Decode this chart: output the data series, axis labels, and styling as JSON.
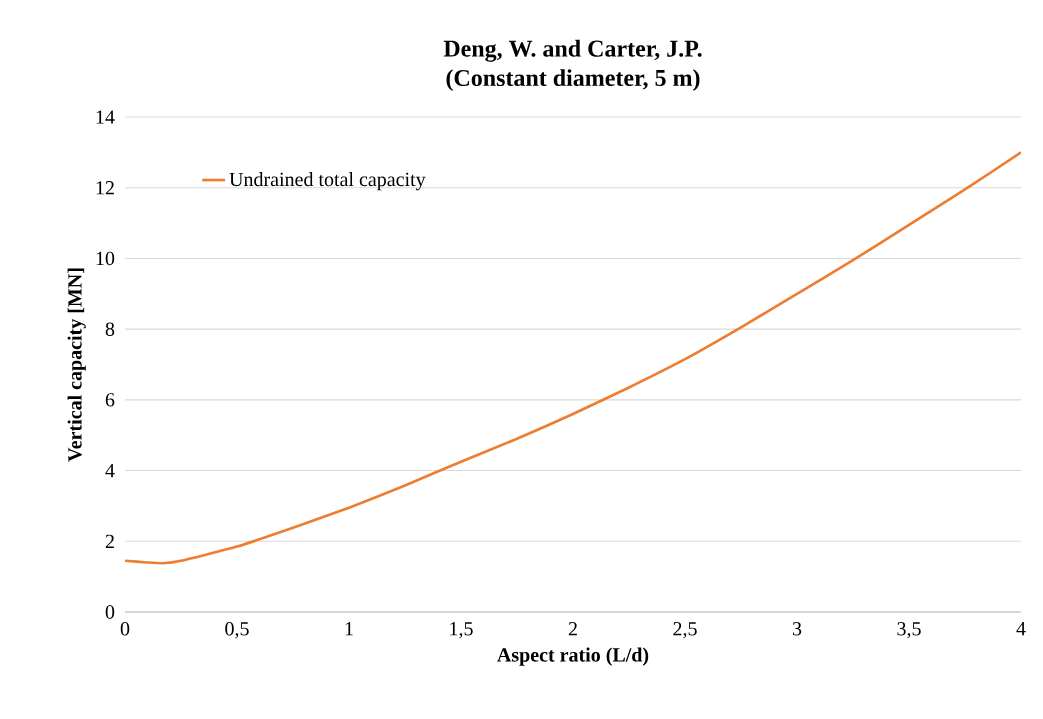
{
  "chart_data": {
    "type": "line",
    "title": "Deng, W. and Carter, J.P.\n(Constant diameter, 5 m)",
    "xlabel": "Aspect ratio  (L/d)",
    "ylabel": "Vertical  capacity [MN]",
    "series": [
      {
        "name": "Undrained total capacity",
        "color": "#ed7d31",
        "x": [
          0,
          0.1,
          0.17,
          0.25,
          0.5,
          0.75,
          1,
          1.25,
          1.5,
          1.75,
          2,
          2.25,
          2.5,
          2.75,
          3,
          3.25,
          3.5,
          3.75,
          4
        ],
        "values": [
          1.45,
          1.4,
          1.38,
          1.45,
          1.85,
          2.38,
          2.95,
          3.58,
          4.25,
          4.9,
          5.6,
          6.35,
          7.15,
          8.05,
          9.0,
          9.95,
          10.95,
          11.95,
          13.0
        ]
      }
    ],
    "xlim": [
      0,
      4
    ],
    "xticks": [
      0,
      {
        "value": 0.5,
        "label": "0,5"
      },
      1,
      {
        "value": 1.5,
        "label": "1,5"
      },
      2,
      {
        "value": 2.5,
        "label": "2,5"
      },
      3,
      {
        "value": 3.5,
        "label": "3,5"
      },
      4
    ],
    "ylim": [
      0,
      14
    ],
    "yticks": [
      0,
      2,
      4,
      6,
      8,
      10,
      12,
      14
    ],
    "grid": "y",
    "legend": "top left",
    "marker": "none",
    "line_style": "solid"
  }
}
